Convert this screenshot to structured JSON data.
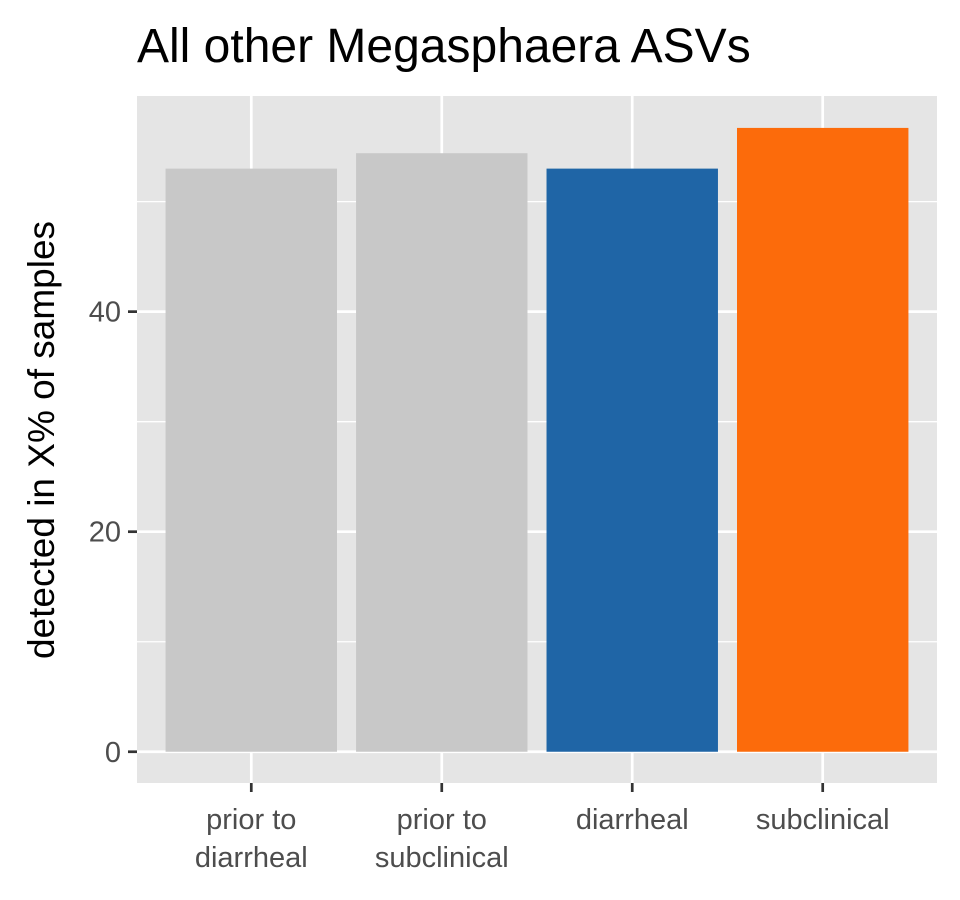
{
  "chart_data": {
    "type": "bar",
    "title": "All other Megasphaera ASVs",
    "xlabel": "",
    "ylabel": "detected in X% of samples",
    "categories": [
      "prior to\ndiarrheal",
      "prior to\nsubclinical",
      "diarrheal",
      "subclinical"
    ],
    "values": [
      53.0,
      54.4,
      53.0,
      56.7
    ],
    "colors": [
      "#c8c8c8",
      "#c8c8c8",
      "#1f65a6",
      "#fc6b0b"
    ],
    "ylim": [
      -2.84,
      59.6
    ],
    "yticks": [
      0,
      20,
      40
    ],
    "ytick_labels": [
      "0",
      "20",
      "40"
    ],
    "grid": true,
    "panel_background": "#e5e5e5",
    "grid_color": "#ffffff",
    "legend": "none"
  }
}
